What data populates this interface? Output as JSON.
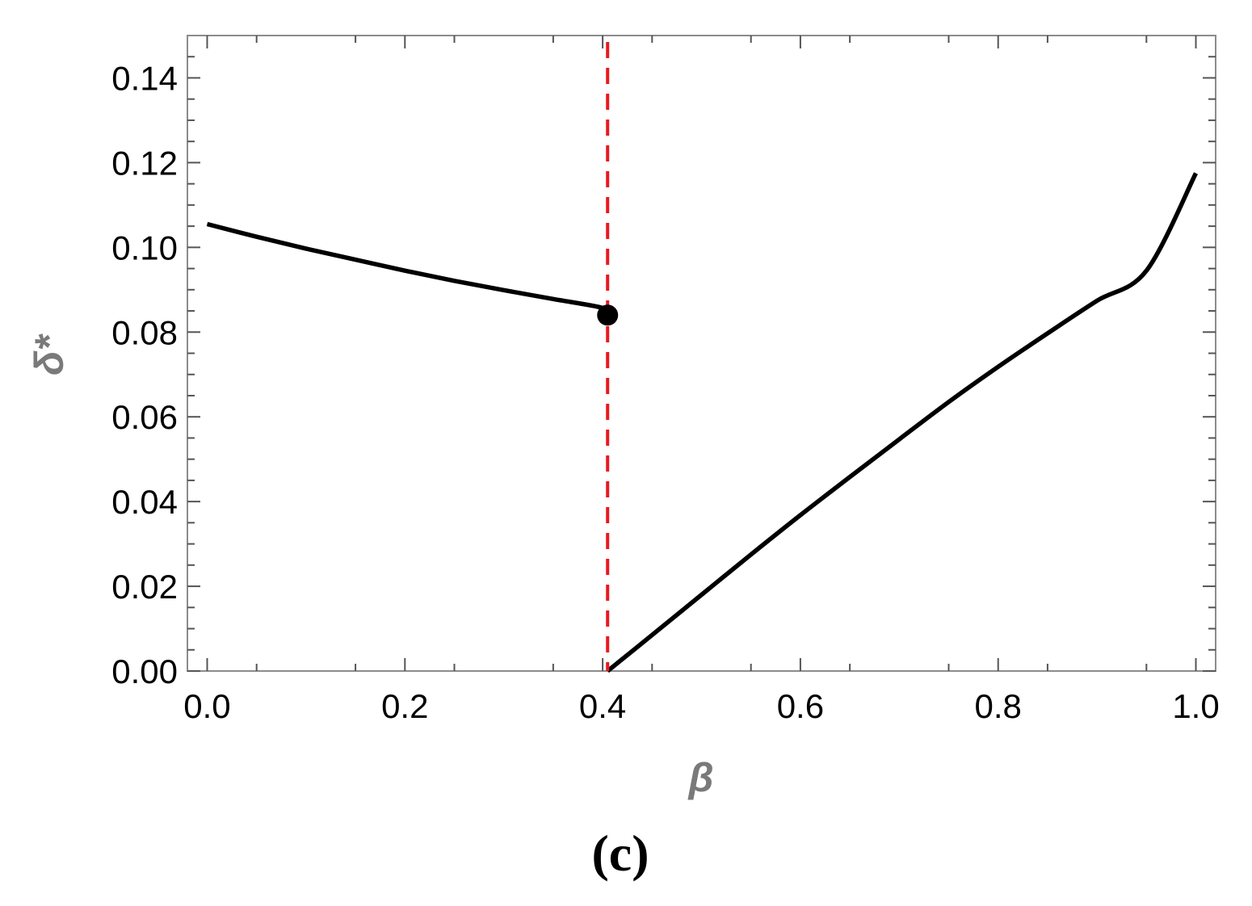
{
  "chart_data": {
    "type": "line",
    "panel_label": "(c)",
    "xlabel": "β",
    "ylabel": "δ*",
    "xlim": [
      -0.02,
      1.02
    ],
    "ylim": [
      0.0,
      0.15
    ],
    "x_ticks": [
      {
        "value": 0.0,
        "label": "0.0"
      },
      {
        "value": 0.2,
        "label": "0.2"
      },
      {
        "value": 0.4,
        "label": "0.4"
      },
      {
        "value": 0.6,
        "label": "0.6"
      },
      {
        "value": 0.8,
        "label": "0.8"
      },
      {
        "value": 1.0,
        "label": "1.0"
      }
    ],
    "y_ticks": [
      {
        "value": 0.0,
        "label": "0.00"
      },
      {
        "value": 0.02,
        "label": "0.02"
      },
      {
        "value": 0.04,
        "label": "0.04"
      },
      {
        "value": 0.06,
        "label": "0.06"
      },
      {
        "value": 0.08,
        "label": "0.08"
      },
      {
        "value": 0.1,
        "label": "0.10"
      },
      {
        "value": 0.12,
        "label": "0.12"
      },
      {
        "value": 0.14,
        "label": "0.14"
      }
    ],
    "grid": false,
    "series": [
      {
        "color": "#000000",
        "style": "solid",
        "points": [
          [
            0.0,
            0.1055
          ],
          [
            0.05,
            0.1025
          ],
          [
            0.1,
            0.0997
          ],
          [
            0.15,
            0.0971
          ],
          [
            0.2,
            0.0945
          ],
          [
            0.25,
            0.0921
          ],
          [
            0.3,
            0.0899
          ],
          [
            0.35,
            0.0878
          ],
          [
            0.4,
            0.0857
          ],
          [
            0.405,
            0.084
          ]
        ]
      },
      {
        "color": "#000000",
        "style": "solid",
        "points": [
          [
            0.405,
            0.0
          ],
          [
            0.45,
            0.0085
          ],
          [
            0.5,
            0.018
          ],
          [
            0.55,
            0.0275
          ],
          [
            0.6,
            0.0368
          ],
          [
            0.65,
            0.0458
          ],
          [
            0.7,
            0.0547
          ],
          [
            0.75,
            0.0635
          ],
          [
            0.8,
            0.0718
          ],
          [
            0.85,
            0.0797
          ],
          [
            0.9,
            0.0874
          ],
          [
            0.95,
            0.0945
          ],
          [
            1.0,
            0.1175
          ]
        ]
      }
    ],
    "markers": [
      {
        "x": 0.405,
        "y": 0.084,
        "shape": "filled-circle",
        "color": "#000000"
      }
    ],
    "reference_lines": [
      {
        "orientation": "vertical",
        "x": 0.405,
        "color": "#e8191f",
        "style": "dashed"
      }
    ]
  }
}
